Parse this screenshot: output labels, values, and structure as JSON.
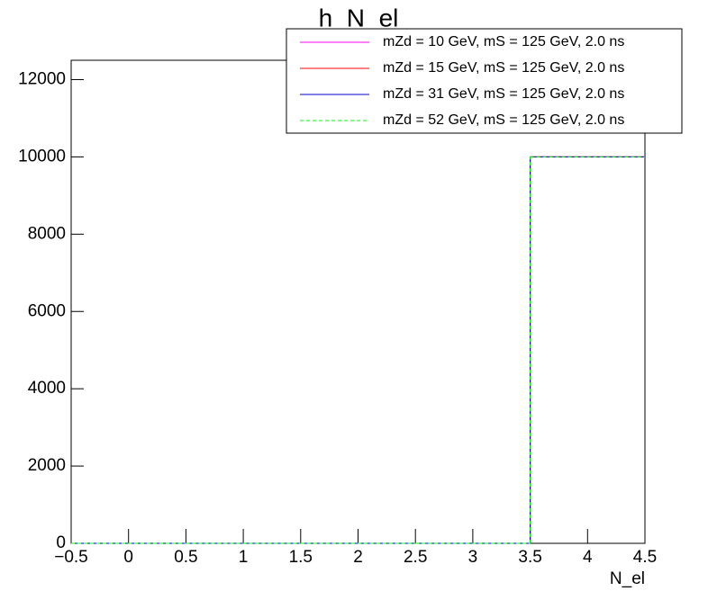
{
  "chart_data": {
    "type": "histogram",
    "title": "h_N_el",
    "x_label": "N_el",
    "bins": [
      -0.5,
      0.5,
      1.5,
      2.5,
      3.5,
      4.5
    ],
    "series": [
      {
        "name": "mZd = 10 GeV, mS = 125 GeV, 2.0 ns",
        "color": "#ff00ff",
        "dashed": false,
        "values": [
          0,
          0,
          0,
          0,
          10000
        ]
      },
      {
        "name": "mZd = 15 GeV, mS = 125 GeV, 2.0 ns",
        "color": "#ff0000",
        "dashed": false,
        "values": [
          0,
          0,
          0,
          0,
          10000
        ]
      },
      {
        "name": "mZd = 31 GeV, mS = 125 GeV, 2.0 ns",
        "color": "#0000cc",
        "dashed": false,
        "values": [
          0,
          0,
          0,
          0,
          10000
        ]
      },
      {
        "name": "mZd = 52 GeV, mS = 125 GeV, 2.0 ns",
        "color": "#00ff00",
        "dashed": true,
        "values": [
          0,
          0,
          0,
          0,
          10000
        ]
      }
    ],
    "xlim": [
      -0.5,
      4.5
    ],
    "ylim": [
      0,
      12500
    ],
    "xticks": [
      {
        "value": -0.5,
        "label": "−0.5"
      },
      0,
      0.5,
      1,
      1.5,
      2,
      2.5,
      3,
      3.5,
      4,
      4.5
    ],
    "yticks": [
      0,
      2000,
      4000,
      6000,
      8000,
      10000,
      12000
    ],
    "legend": "upper right"
  }
}
